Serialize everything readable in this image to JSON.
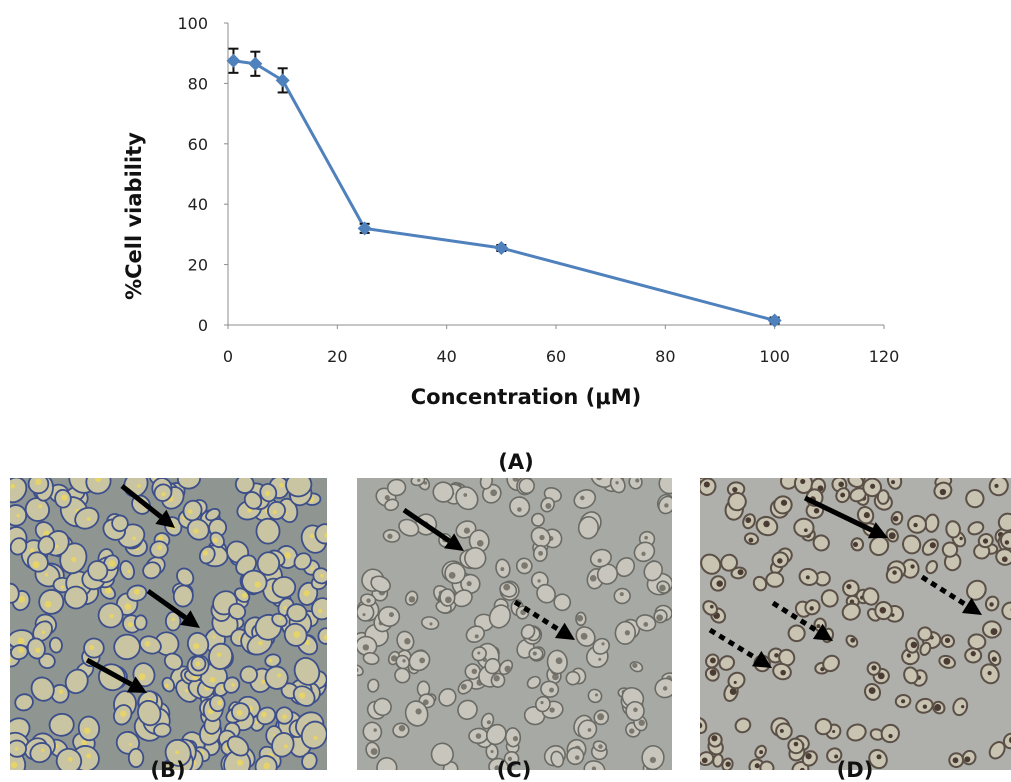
{
  "chart_data": {
    "type": "line",
    "xlabel": "Concentration (μM)",
    "ylabel": "%Cell viability",
    "xlim": [
      0,
      120
    ],
    "ylim": [
      0,
      100
    ],
    "xticks": [
      0,
      20,
      40,
      60,
      80,
      100,
      120
    ],
    "yticks": [
      0,
      20,
      40,
      60,
      80,
      100
    ],
    "grid": false,
    "series": [
      {
        "x": [
          1,
          5,
          10,
          25,
          50,
          100
        ],
        "y": [
          87.5,
          86.5,
          81,
          32,
          25.5,
          1.5
        ],
        "error": [
          4,
          4,
          4,
          1.5,
          1,
          1
        ],
        "color": "#4f81bd"
      }
    ]
  },
  "labels": {
    "panel_a": "(A)",
    "panel_b": "(B)",
    "panel_c": "(C)",
    "panel_d": "(D)"
  },
  "colors": {
    "line": "#4f81bd",
    "panel_b_bg": "#8f9692",
    "panel_c_bg": "#a7a9a4",
    "panel_d_bg": "#afb0ab"
  },
  "micrographs": [
    {
      "name": "micrograph-b",
      "arrows_solid": 3,
      "arrows_dotted": 0
    },
    {
      "name": "micrograph-c",
      "arrows_solid": 1,
      "arrows_dotted": 1
    },
    {
      "name": "micrograph-d",
      "arrows_solid": 1,
      "arrows_dotted": 3
    }
  ]
}
